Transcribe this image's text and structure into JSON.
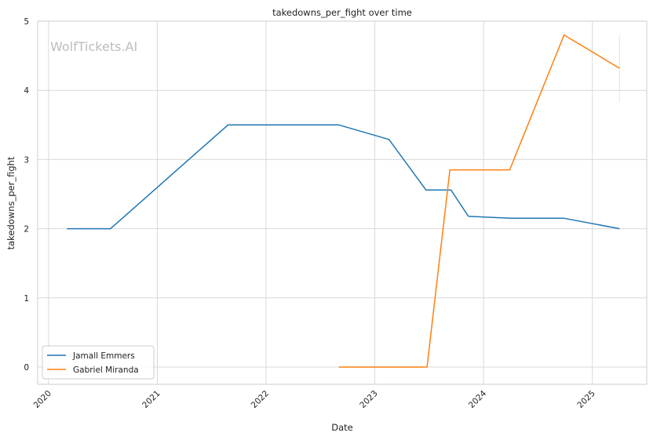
{
  "chart_data": {
    "type": "line",
    "title": "takedowns_per_fight over time",
    "xlabel": "Date",
    "ylabel": "takedowns_per_fight",
    "watermark": "WolfTickets.AI",
    "xlim": [
      2019.9,
      2025.5
    ],
    "ylim": [
      -0.25,
      5.0
    ],
    "x_ticks": [
      2020,
      2021,
      2022,
      2023,
      2024,
      2025
    ],
    "y_ticks": [
      0,
      1,
      2,
      3,
      4,
      5
    ],
    "grid": true,
    "legend_position": "lower-left",
    "series": [
      {
        "name": "Jamall Emmers",
        "color": "#1f77b4",
        "points": [
          [
            2020.17,
            2.0
          ],
          [
            2020.57,
            2.0
          ],
          [
            2021.65,
            3.5
          ],
          [
            2022.67,
            3.5
          ],
          [
            2023.13,
            3.29
          ],
          [
            2023.47,
            2.56
          ],
          [
            2023.7,
            2.56
          ],
          [
            2023.86,
            2.18
          ],
          [
            2024.25,
            2.15
          ],
          [
            2024.74,
            2.15
          ],
          [
            2025.25,
            2.0
          ]
        ]
      },
      {
        "name": "Gabriel Miranda",
        "color": "#ff7f0e",
        "points": [
          [
            2022.67,
            0.0
          ],
          [
            2023.48,
            0.0
          ],
          [
            2023.69,
            2.85
          ],
          [
            2024.24,
            2.85
          ],
          [
            2024.74,
            4.8
          ],
          [
            2025.25,
            4.32
          ]
        ]
      }
    ],
    "error_bar": {
      "color": "#ff7f0e",
      "x": 2025.25,
      "range": [
        3.84,
        4.8
      ]
    }
  }
}
